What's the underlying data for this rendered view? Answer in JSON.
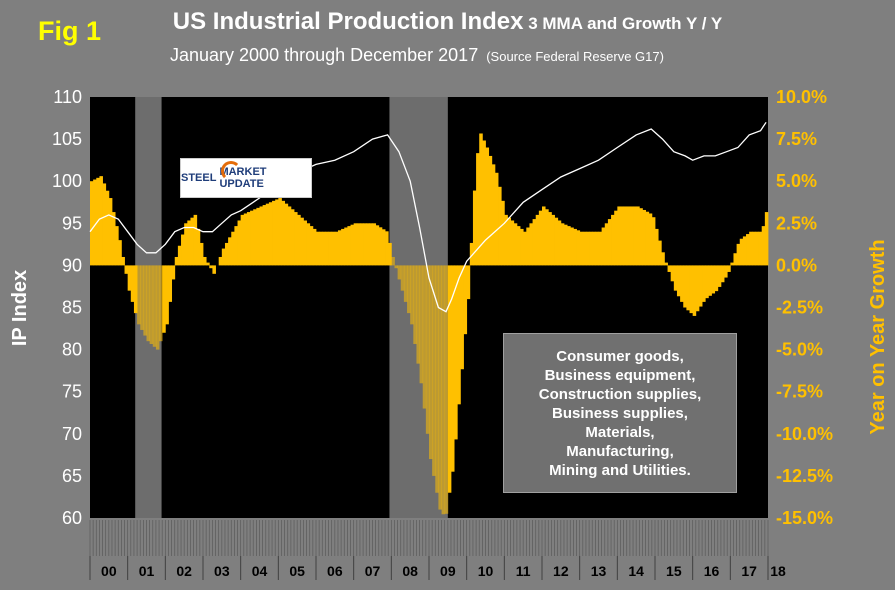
{
  "header": {
    "fig_label": "Fig 1",
    "title_main": "US Industrial Production Index",
    "title_sub": " 3 MMA and Growth Y / Y",
    "subtitle": "January 2000 through December 2017",
    "source": "(Source Federal Reserve G17)"
  },
  "logo": {
    "word1": "STEEL",
    "word2": "MARKET UPDATE"
  },
  "annotation": {
    "lines": [
      "Consumer goods,",
      "Business equipment,",
      "Construction supplies,",
      "Business supplies,",
      "Materials,",
      "Manufacturing,",
      "Mining and Utilities."
    ]
  },
  "colors": {
    "background": "#7f7f7f",
    "plot_bg": "#000000",
    "bars": "#ffc000",
    "line": "#ffffff",
    "recession": "#808080"
  },
  "chart_data": {
    "type": "bar",
    "left_axis": {
      "title": "IP Index",
      "ticks": [
        "60",
        "65",
        "70",
        "75",
        "80",
        "85",
        "90",
        "95",
        "100",
        "105",
        "110"
      ],
      "range": [
        60,
        110
      ]
    },
    "right_axis": {
      "title": "Year on Year Growth",
      "ticks": [
        "-15.0%",
        "-12.5%",
        "-10.0%",
        "-7.5%",
        "-5.0%",
        "-2.5%",
        "0.0%",
        "2.5%",
        "5.0%",
        "7.5%",
        "10.0%"
      ],
      "range": [
        -15,
        10
      ]
    },
    "x_labels": [
      "00",
      "01",
      "02",
      "03",
      "04",
      "05",
      "06",
      "07",
      "08",
      "09",
      "10",
      "11",
      "12",
      "13",
      "14",
      "15",
      "16",
      "17",
      "18"
    ],
    "recessions": [
      {
        "start": 2001.2,
        "end": 2001.9
      },
      {
        "start": 2007.95,
        "end": 2009.5
      }
    ],
    "index_series": {
      "x": [
        2000.0,
        2000.25,
        2000.5,
        2000.75,
        2001.0,
        2001.25,
        2001.5,
        2001.75,
        2002.0,
        2002.25,
        2002.5,
        2002.75,
        2003.0,
        2003.25,
        2003.5,
        2003.75,
        2004.0,
        2004.5,
        2005.0,
        2005.5,
        2006.0,
        2006.5,
        2007.0,
        2007.5,
        2007.9,
        2008.2,
        2008.5,
        2008.75,
        2009.0,
        2009.25,
        2009.45,
        2009.6,
        2009.8,
        2010.0,
        2010.5,
        2011.0,
        2011.5,
        2012.0,
        2012.5,
        2013.0,
        2013.5,
        2014.0,
        2014.5,
        2014.9,
        2015.2,
        2015.5,
        2015.8,
        2016.0,
        2016.3,
        2016.6,
        2016.9,
        2017.2,
        2017.5,
        2017.8,
        2017.95
      ],
      "values": [
        94.0,
        95.5,
        96.0,
        95.5,
        94.0,
        92.5,
        91.5,
        91.5,
        92.5,
        94.0,
        94.5,
        94.5,
        94.0,
        94.0,
        95.0,
        96.0,
        96.5,
        98.0,
        100.0,
        101.0,
        102.0,
        102.5,
        103.5,
        105.0,
        105.5,
        103.5,
        100.0,
        94.5,
        88.5,
        85.0,
        84.5,
        86.0,
        88.5,
        90.5,
        93.0,
        95.0,
        97.5,
        99.0,
        100.5,
        101.5,
        102.5,
        104.0,
        105.5,
        106.2,
        105.0,
        103.5,
        103.0,
        102.5,
        103.0,
        103.0,
        103.5,
        104.0,
        105.5,
        106.0,
        107.0
      ]
    },
    "growth_series": {
      "x": [
        2000.0,
        2000.25,
        2000.5,
        2000.75,
        2001.0,
        2001.25,
        2001.5,
        2001.75,
        2002.0,
        2002.25,
        2002.5,
        2002.75,
        2003.0,
        2003.25,
        2003.5,
        2003.75,
        2004.0,
        2004.5,
        2005.0,
        2005.5,
        2006.0,
        2006.5,
        2007.0,
        2007.5,
        2007.85,
        2008.0,
        2008.25,
        2008.5,
        2008.75,
        2009.0,
        2009.25,
        2009.4,
        2009.6,
        2009.8,
        2010.0,
        2010.15,
        2010.3,
        2010.5,
        2010.75,
        2011.0,
        2011.5,
        2012.0,
        2012.5,
        2013.0,
        2013.5,
        2014.0,
        2014.5,
        2014.9,
        2015.2,
        2015.5,
        2015.75,
        2016.0,
        2016.3,
        2016.6,
        2016.9,
        2017.2,
        2017.5,
        2017.8,
        2017.95
      ],
      "values": [
        5.0,
        5.3,
        4.0,
        1.5,
        -1.5,
        -3.5,
        -4.5,
        -5.0,
        -3.5,
        0.5,
        2.5,
        3.0,
        0.5,
        -0.5,
        1.0,
        2.0,
        3.0,
        3.5,
        4.0,
        3.0,
        2.0,
        2.0,
        2.5,
        2.5,
        2.0,
        0.5,
        -1.5,
        -3.5,
        -7.0,
        -11.5,
        -14.5,
        -15.0,
        -12.0,
        -7.0,
        -2.0,
        4.0,
        8.0,
        7.0,
        5.5,
        3.0,
        2.0,
        3.5,
        2.5,
        2.0,
        2.0,
        3.5,
        3.5,
        3.0,
        0.5,
        -1.5,
        -2.5,
        -3.0,
        -2.0,
        -1.5,
        -0.5,
        1.5,
        2.0,
        2.0,
        3.5
      ]
    }
  }
}
